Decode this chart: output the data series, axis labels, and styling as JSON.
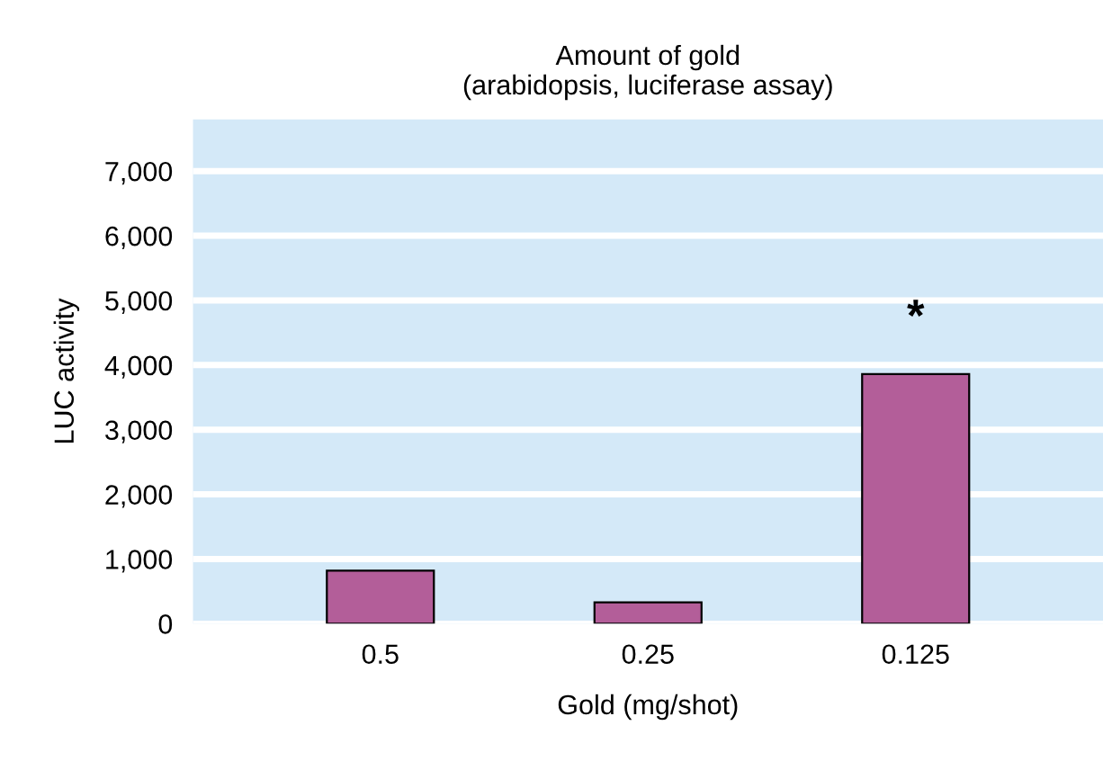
{
  "chart_data": {
    "type": "bar",
    "title": "Amount of gold\n(arabidopsis, luciferase assay)",
    "xlabel": "Gold (mg/shot)",
    "ylabel": "LUC activity",
    "categories": [
      "0.5",
      "0.25",
      "0.125"
    ],
    "values": [
      820,
      330,
      3860
    ],
    "color": "#b35e99",
    "ylim": [
      0,
      7800
    ],
    "yticks": [
      {
        "value": 0,
        "label": "0"
      },
      {
        "value": 1000,
        "label": "1,000"
      },
      {
        "value": 2000,
        "label": "2,000"
      },
      {
        "value": 3000,
        "label": "3,000"
      },
      {
        "value": 4000,
        "label": "4,000"
      },
      {
        "value": 5000,
        "label": "5,000"
      },
      {
        "value": 6000,
        "label": "6,000"
      },
      {
        "value": 7000,
        "label": "7,000"
      }
    ],
    "grid": "y",
    "annotations": [
      "*"
    ]
  }
}
